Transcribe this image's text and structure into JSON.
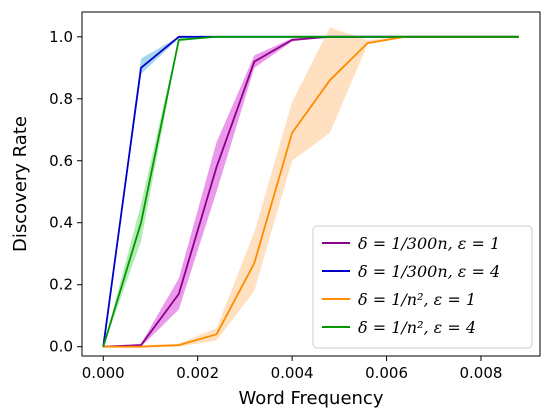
{
  "chart_data": {
    "type": "line",
    "title": "",
    "xlabel": "Word Frequency",
    "ylabel": "Discovery Rate",
    "xlim": [
      -0.00045,
      0.00925
    ],
    "ylim": [
      -0.03,
      1.08
    ],
    "xticks": [
      0.0,
      0.002,
      0.004,
      0.006,
      0.008
    ],
    "xtick_labels": [
      "0.000",
      "0.002",
      "0.004",
      "0.006",
      "0.008"
    ],
    "yticks": [
      0.0,
      0.2,
      0.4,
      0.6,
      0.8,
      1.0
    ],
    "ytick_labels": [
      "0.0",
      "0.2",
      "0.4",
      "0.6",
      "0.8",
      "1.0"
    ],
    "grid": false,
    "legend_position": "lower-right",
    "x": [
      0.0,
      0.0008,
      0.0016,
      0.0024,
      0.0032,
      0.004,
      0.0048,
      0.0056,
      0.0064,
      0.0072,
      0.008,
      0.0088
    ],
    "series": [
      {
        "name": "δ = 1/300n, ε = 1",
        "color": "#8b008b",
        "band_color": "#cc00cc",
        "values": [
          0.0,
          0.005,
          0.17,
          0.58,
          0.92,
          0.99,
          1.0,
          1.0,
          1.0,
          1.0,
          1.0,
          1.0
        ],
        "lower": [
          0.0,
          0.0,
          0.12,
          0.5,
          0.9,
          0.985,
          1.0,
          1.0,
          1.0,
          1.0,
          1.0,
          1.0
        ],
        "upper": [
          0.0,
          0.01,
          0.22,
          0.66,
          0.94,
          0.995,
          1.0,
          1.0,
          1.0,
          1.0,
          1.0,
          1.0
        ]
      },
      {
        "name": "δ = 1/300n, ε = 4",
        "color": "#0000cc",
        "band_color": "#2299dd",
        "values": [
          0.0,
          0.9,
          1.0,
          1.0,
          1.0,
          1.0,
          1.0,
          1.0,
          1.0,
          1.0,
          1.0,
          1.0
        ],
        "lower": [
          0.0,
          0.88,
          0.995,
          1.0,
          1.0,
          1.0,
          1.0,
          1.0,
          1.0,
          1.0,
          1.0,
          1.0
        ],
        "upper": [
          0.0,
          0.93,
          1.0,
          1.0,
          1.0,
          1.0,
          1.0,
          1.0,
          1.0,
          1.0,
          1.0,
          1.0
        ]
      },
      {
        "name": "δ = 1/n², ε = 1",
        "color": "#ff8c00",
        "band_color": "#ffb366",
        "values": [
          0.0,
          0.0,
          0.005,
          0.04,
          0.27,
          0.69,
          0.86,
          0.98,
          1.0,
          1.0,
          1.0,
          1.0
        ],
        "lower": [
          0.0,
          0.0,
          0.0,
          0.02,
          0.18,
          0.6,
          0.69,
          0.975,
          1.0,
          1.0,
          1.0,
          1.0
        ],
        "upper": [
          0.0,
          0.005,
          0.01,
          0.06,
          0.37,
          0.79,
          1.03,
          0.99,
          1.0,
          1.0,
          1.0,
          1.0
        ]
      },
      {
        "name": "δ = 1/n², ε = 4",
        "color": "#009900",
        "band_color": "#44cc44",
        "values": [
          0.0,
          0.4,
          0.99,
          1.0,
          1.0,
          1.0,
          1.0,
          1.0,
          1.0,
          1.0,
          1.0,
          1.0
        ],
        "lower": [
          0.0,
          0.34,
          0.985,
          1.0,
          1.0,
          1.0,
          1.0,
          1.0,
          1.0,
          1.0,
          1.0,
          1.0
        ],
        "upper": [
          0.0,
          0.46,
          0.995,
          1.0,
          1.0,
          1.0,
          1.0,
          1.0,
          1.0,
          1.0,
          1.0,
          1.0
        ]
      }
    ]
  }
}
